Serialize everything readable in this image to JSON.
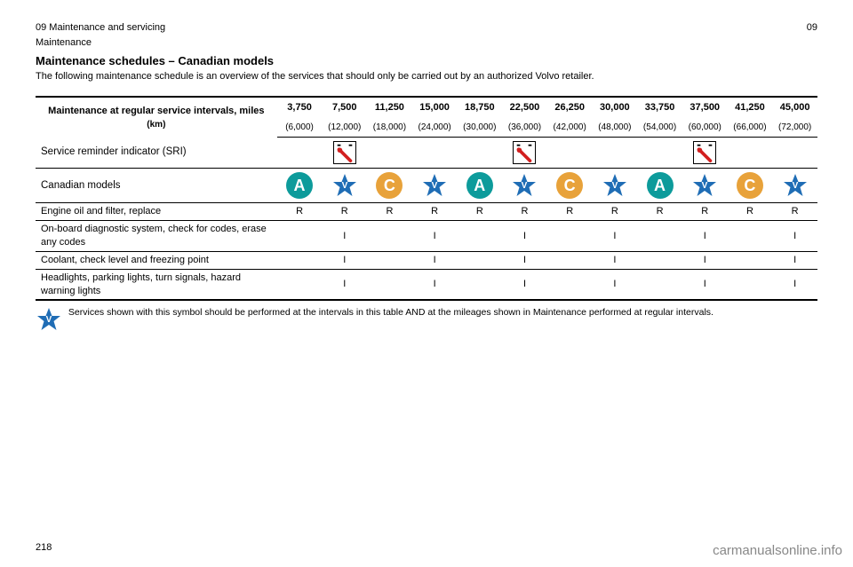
{
  "header": {
    "section": "09 Maintenance and servicing",
    "page_title": "Maintenance",
    "page_number": "09"
  },
  "title": "Maintenance schedules – Canadian models",
  "subtitle_full": "The following maintenance schedule is an overview of the services that should only be carried out by an authorized Volvo retailer.",
  "intervals": {
    "label_miles": "Maintenance at regular service intervals, miles",
    "label_km": "(km)",
    "headers": [
      "3,750",
      "7,500",
      "11,250",
      "15,000",
      "18,750",
      "22,500",
      "26,250",
      "30,000",
      "33,750",
      "37,500",
      "41,250",
      "45,000"
    ],
    "subs": [
      "(6,000)",
      "(12,000)",
      "(18,000)",
      "(24,000)",
      "(30,000)",
      "(36,000)",
      "(42,000)",
      "(48,000)",
      "(54,000)",
      "(60,000)",
      "(66,000)",
      "(72,000)"
    ]
  },
  "colors": {
    "badge_a": "#0d9b9b",
    "badge_c": "#e8a23a",
    "star": "#1f6db5",
    "wrench": "#d21f1f"
  },
  "rows": {
    "service_reminder": "Service reminder indicator (SRI)",
    "canadian_models": "Canadian models",
    "tasks": [
      {
        "text": "Engine oil and filter, replace",
        "pattern": [
          "R",
          "R",
          "R",
          "R",
          "R",
          "R",
          "R",
          "R",
          "R",
          "R",
          "R",
          "R"
        ]
      },
      {
        "text": "On-board diagnostic system, check for codes, erase any codes",
        "pattern": [
          "",
          "I",
          "",
          "I",
          "",
          "I",
          "",
          "I",
          "",
          "I",
          "",
          "I"
        ]
      },
      {
        "text": "Coolant, check level and freezing point",
        "pattern": [
          "",
          "I",
          "",
          "I",
          "",
          "I",
          "",
          "I",
          "",
          "I",
          "",
          "I"
        ]
      },
      {
        "text": "Headlights, parking lights, turn signals, hazard warning lights",
        "pattern": [
          "",
          "I",
          "",
          "I",
          "",
          "I",
          "",
          "I",
          "",
          "I",
          "",
          "I"
        ]
      }
    ],
    "letters": {
      "a": "A",
      "c": "C"
    }
  },
  "footnote": "Services shown with this symbol should be performed at the intervals in this table AND at the mileages shown in Maintenance performed at regular intervals.",
  "page_foot": "218",
  "watermark": "carmanualsonline.info"
}
